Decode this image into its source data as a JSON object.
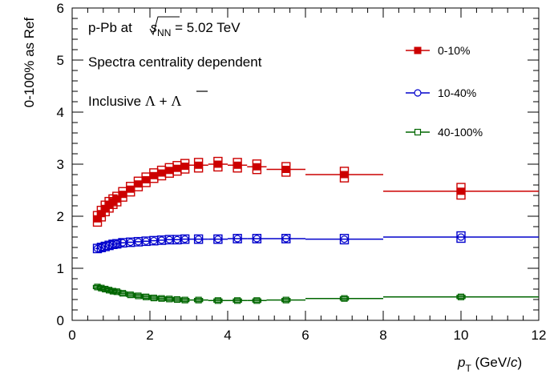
{
  "chart_data": {
    "type": "scatter",
    "xlabel": "p",
    "xlabel_sub": "T",
    "xlabel_unit_open": " (GeV/",
    "xlabel_unit_c": "c",
    "xlabel_unit_close": ")",
    "ylabel": "0-100% as Ref",
    "xlim": [
      0,
      12
    ],
    "ylim": [
      0,
      6
    ],
    "x_ticks": [
      "0",
      "2",
      "4",
      "6",
      "8",
      "10",
      "12"
    ],
    "y_ticks": [
      "0",
      "1",
      "2",
      "3",
      "4",
      "5",
      "6"
    ],
    "grid": false,
    "legend_position": "top-right",
    "annotations": {
      "line1_prefix": "p-Pb at ",
      "line1_sqrt_s": "s",
      "line1_sub": "NN",
      "line1_suffix": " = 5.02 TeV",
      "line2": "Spectra centrality dependent",
      "line3_prefix": "Inclusive ",
      "line3_lambda": "Λ",
      "line3_plus": " + ",
      "line3_antilambda": "Λ"
    },
    "series": [
      {
        "name": "0-10%",
        "color": "#cc0000",
        "marker": "filled-square",
        "points": [
          {
            "x": 0.65,
            "y": 1.95,
            "xerr": 0.05,
            "syst": 0.14
          },
          {
            "x": 0.75,
            "y": 2.05,
            "xerr": 0.05,
            "syst": 0.14
          },
          {
            "x": 0.85,
            "y": 2.15,
            "xerr": 0.05,
            "syst": 0.14
          },
          {
            "x": 0.95,
            "y": 2.22,
            "xerr": 0.05,
            "syst": 0.14
          },
          {
            "x": 1.05,
            "y": 2.28,
            "xerr": 0.05,
            "syst": 0.13
          },
          {
            "x": 1.15,
            "y": 2.33,
            "xerr": 0.05,
            "syst": 0.13
          },
          {
            "x": 1.3,
            "y": 2.42,
            "xerr": 0.1,
            "syst": 0.13
          },
          {
            "x": 1.5,
            "y": 2.52,
            "xerr": 0.1,
            "syst": 0.13
          },
          {
            "x": 1.7,
            "y": 2.62,
            "xerr": 0.1,
            "syst": 0.13
          },
          {
            "x": 1.9,
            "y": 2.7,
            "xerr": 0.1,
            "syst": 0.13
          },
          {
            "x": 2.1,
            "y": 2.78,
            "xerr": 0.1,
            "syst": 0.13
          },
          {
            "x": 2.3,
            "y": 2.83,
            "xerr": 0.1,
            "syst": 0.13
          },
          {
            "x": 2.5,
            "y": 2.88,
            "xerr": 0.1,
            "syst": 0.13
          },
          {
            "x": 2.7,
            "y": 2.92,
            "xerr": 0.1,
            "syst": 0.13
          },
          {
            "x": 2.9,
            "y": 2.96,
            "xerr": 0.1,
            "syst": 0.13
          },
          {
            "x": 3.25,
            "y": 2.98,
            "xerr": 0.25,
            "syst": 0.13
          },
          {
            "x": 3.75,
            "y": 3.0,
            "xerr": 0.25,
            "syst": 0.13
          },
          {
            "x": 4.25,
            "y": 2.98,
            "xerr": 0.25,
            "syst": 0.13
          },
          {
            "x": 4.75,
            "y": 2.95,
            "xerr": 0.25,
            "syst": 0.13
          },
          {
            "x": 5.5,
            "y": 2.9,
            "xerr": 0.5,
            "syst": 0.13
          },
          {
            "x": 7.0,
            "y": 2.8,
            "xerr": 1.0,
            "syst": 0.14
          },
          {
            "x": 10.0,
            "y": 2.48,
            "xerr": 2.0,
            "syst": 0.15
          }
        ]
      },
      {
        "name": "10-40%",
        "color": "#0000cc",
        "marker": "open-circle",
        "points": [
          {
            "x": 0.65,
            "y": 1.38,
            "xerr": 0.05,
            "syst": 0.08
          },
          {
            "x": 0.75,
            "y": 1.4,
            "xerr": 0.05,
            "syst": 0.08
          },
          {
            "x": 0.85,
            "y": 1.42,
            "xerr": 0.05,
            "syst": 0.08
          },
          {
            "x": 0.95,
            "y": 1.44,
            "xerr": 0.05,
            "syst": 0.08
          },
          {
            "x": 1.05,
            "y": 1.46,
            "xerr": 0.05,
            "syst": 0.08
          },
          {
            "x": 1.15,
            "y": 1.47,
            "xerr": 0.05,
            "syst": 0.08
          },
          {
            "x": 1.3,
            "y": 1.49,
            "xerr": 0.1,
            "syst": 0.08
          },
          {
            "x": 1.5,
            "y": 1.5,
            "xerr": 0.1,
            "syst": 0.08
          },
          {
            "x": 1.7,
            "y": 1.51,
            "xerr": 0.1,
            "syst": 0.08
          },
          {
            "x": 1.9,
            "y": 1.52,
            "xerr": 0.1,
            "syst": 0.08
          },
          {
            "x": 2.1,
            "y": 1.53,
            "xerr": 0.1,
            "syst": 0.08
          },
          {
            "x": 2.3,
            "y": 1.54,
            "xerr": 0.1,
            "syst": 0.08
          },
          {
            "x": 2.5,
            "y": 1.55,
            "xerr": 0.1,
            "syst": 0.08
          },
          {
            "x": 2.7,
            "y": 1.55,
            "xerr": 0.1,
            "syst": 0.08
          },
          {
            "x": 2.9,
            "y": 1.56,
            "xerr": 0.1,
            "syst": 0.08
          },
          {
            "x": 3.25,
            "y": 1.56,
            "xerr": 0.25,
            "syst": 0.08
          },
          {
            "x": 3.75,
            "y": 1.56,
            "xerr": 0.25,
            "syst": 0.08
          },
          {
            "x": 4.25,
            "y": 1.57,
            "xerr": 0.25,
            "syst": 0.08
          },
          {
            "x": 4.75,
            "y": 1.57,
            "xerr": 0.25,
            "syst": 0.08
          },
          {
            "x": 5.5,
            "y": 1.57,
            "xerr": 0.5,
            "syst": 0.08
          },
          {
            "x": 7.0,
            "y": 1.56,
            "xerr": 1.0,
            "syst": 0.09
          },
          {
            "x": 10.0,
            "y": 1.6,
            "xerr": 2.0,
            "syst": 0.1
          }
        ]
      },
      {
        "name": "40-100%",
        "color": "#006600",
        "marker": "open-square",
        "points": [
          {
            "x": 0.65,
            "y": 0.64,
            "xerr": 0.05,
            "syst": 0.03
          },
          {
            "x": 0.75,
            "y": 0.62,
            "xerr": 0.05,
            "syst": 0.03
          },
          {
            "x": 0.85,
            "y": 0.6,
            "xerr": 0.05,
            "syst": 0.03
          },
          {
            "x": 0.95,
            "y": 0.58,
            "xerr": 0.05,
            "syst": 0.03
          },
          {
            "x": 1.05,
            "y": 0.56,
            "xerr": 0.05,
            "syst": 0.03
          },
          {
            "x": 1.15,
            "y": 0.55,
            "xerr": 0.05,
            "syst": 0.03
          },
          {
            "x": 1.3,
            "y": 0.52,
            "xerr": 0.1,
            "syst": 0.03
          },
          {
            "x": 1.5,
            "y": 0.49,
            "xerr": 0.1,
            "syst": 0.03
          },
          {
            "x": 1.7,
            "y": 0.47,
            "xerr": 0.1,
            "syst": 0.03
          },
          {
            "x": 1.9,
            "y": 0.45,
            "xerr": 0.1,
            "syst": 0.03
          },
          {
            "x": 2.1,
            "y": 0.43,
            "xerr": 0.1,
            "syst": 0.03
          },
          {
            "x": 2.3,
            "y": 0.42,
            "xerr": 0.1,
            "syst": 0.03
          },
          {
            "x": 2.5,
            "y": 0.41,
            "xerr": 0.1,
            "syst": 0.03
          },
          {
            "x": 2.7,
            "y": 0.4,
            "xerr": 0.1,
            "syst": 0.03
          },
          {
            "x": 2.9,
            "y": 0.39,
            "xerr": 0.1,
            "syst": 0.03
          },
          {
            "x": 3.25,
            "y": 0.39,
            "xerr": 0.25,
            "syst": 0.03
          },
          {
            "x": 3.75,
            "y": 0.38,
            "xerr": 0.25,
            "syst": 0.03
          },
          {
            "x": 4.25,
            "y": 0.38,
            "xerr": 0.25,
            "syst": 0.03
          },
          {
            "x": 4.75,
            "y": 0.38,
            "xerr": 0.25,
            "syst": 0.03
          },
          {
            "x": 5.5,
            "y": 0.39,
            "xerr": 0.5,
            "syst": 0.03
          },
          {
            "x": 7.0,
            "y": 0.42,
            "xerr": 1.0,
            "syst": 0.03
          },
          {
            "x": 10.0,
            "y": 0.45,
            "xerr": 2.0,
            "syst": 0.03
          }
        ]
      }
    ]
  }
}
